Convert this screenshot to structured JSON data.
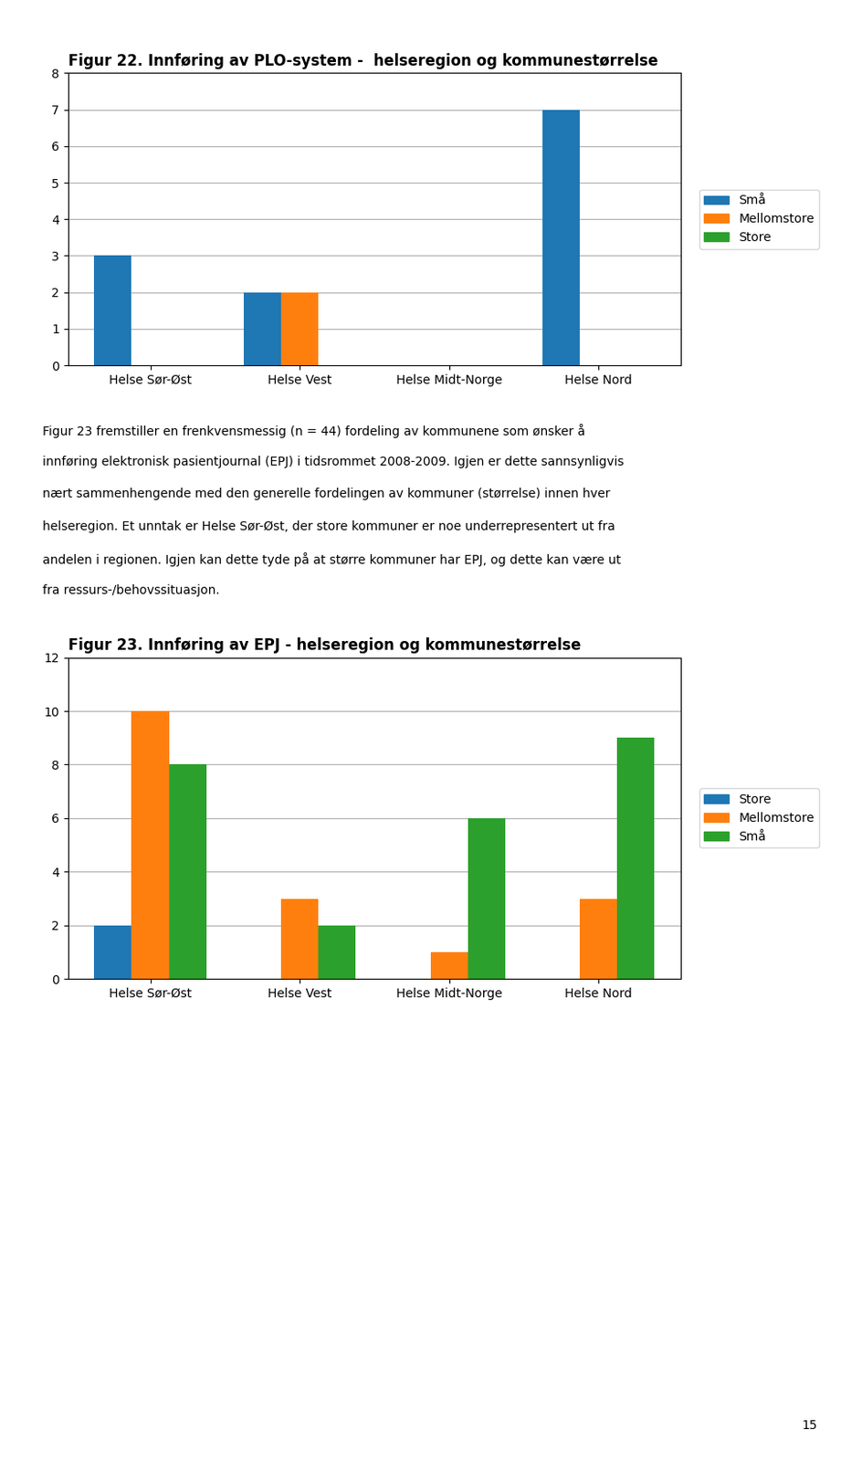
{
  "chart_data": [
    {
      "type": "bar",
      "title": "Figur 22. Innføring av PLO-system -  helseregion og kommunestørrelse",
      "categories": [
        "Helse Sør-Øst",
        "Helse Vest",
        "Helse Midt-Norge",
        "Helse Nord"
      ],
      "series": [
        {
          "name": "Små",
          "values": [
            3,
            2,
            0,
            7
          ]
        },
        {
          "name": "Mellomstore",
          "values": [
            0,
            2,
            0,
            0
          ]
        },
        {
          "name": "Store",
          "values": [
            0,
            0,
            0,
            0
          ]
        }
      ],
      "ylim": [
        0,
        8
      ],
      "yticks": [
        0,
        1,
        2,
        3,
        4,
        5,
        6,
        7,
        8
      ],
      "grid": true,
      "legend": "right",
      "annotations": [
        "Figur 23 fremstiller en frenkvensmessig (n = 44) fordeling av kommunene som ønsker å",
        "innføring elektronisk pasientjournal (EPJ) i tidsrommet 2008-2009. Igjen er dette sannsynligvis",
        "nært sammenhengende med den generelle fordelingen av kommuner (størrelse) innen hver",
        "helseregion. Et unntak er Helse Sør-Øst, der store kommuner er noe underrepresentert ut fra",
        "andelen i regionen. Igjen kan dette tyde på at større kommuner har EPJ, og dette kan være ut",
        "fra ressurs-/behovssituasjon."
      ]
    },
    {
      "type": "bar",
      "title": "Figur 23. Innføring av EPJ - helseregion og kommunestørrelse",
      "categories": [
        "Helse Sør-Øst",
        "Helse Vest",
        "Helse Midt-Norge",
        "Helse Nord"
      ],
      "series": [
        {
          "name": "Store",
          "values": [
            2,
            0,
            0,
            0
          ]
        },
        {
          "name": "Mellomstore",
          "values": [
            10,
            3,
            1,
            3
          ]
        },
        {
          "name": "Små",
          "values": [
            8,
            2,
            6,
            9
          ]
        }
      ],
      "ylim": [
        0,
        12
      ],
      "yticks": [
        0,
        2,
        4,
        6,
        8,
        10,
        12
      ],
      "grid": true,
      "legend": "right",
      "annotations": [
        "15"
      ]
    }
  ]
}
